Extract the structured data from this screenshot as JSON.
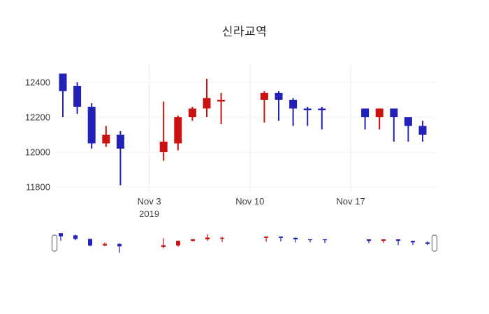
{
  "chart_data": {
    "type": "candlestick",
    "title": "신라교역",
    "up_color": "#CC1111",
    "down_color": "#2222B8",
    "grid_color": "#ebebeb",
    "ylim": [
      11772,
      12500
    ],
    "yticks": [
      11800,
      12000,
      12200,
      12400
    ],
    "xticks": [
      {
        "label": "Nov 3",
        "sublabel": "2019",
        "date": "2019-11-03"
      },
      {
        "label": "Nov 10",
        "sublabel": "",
        "date": "2019-11-10"
      },
      {
        "label": "Nov 17",
        "sublabel": "",
        "date": "2019-11-17"
      }
    ],
    "candles": [
      {
        "date": "2019-10-28",
        "open": 12450,
        "high": 12450,
        "low": 12200,
        "close": 12350
      },
      {
        "date": "2019-10-29",
        "open": 12380,
        "high": 12400,
        "low": 12220,
        "close": 12260
      },
      {
        "date": "2019-10-30",
        "open": 12260,
        "high": 12280,
        "low": 12020,
        "close": 12050
      },
      {
        "date": "2019-10-31",
        "open": 12050,
        "high": 12150,
        "low": 12030,
        "close": 12100
      },
      {
        "date": "2019-11-01",
        "open": 12100,
        "high": 12120,
        "low": 11810,
        "close": 12020
      },
      {
        "date": "2019-11-04",
        "open": 12000,
        "high": 12290,
        "low": 11950,
        "close": 12060
      },
      {
        "date": "2019-11-05",
        "open": 12050,
        "high": 12210,
        "low": 12010,
        "close": 12200
      },
      {
        "date": "2019-11-06",
        "open": 12200,
        "high": 12260,
        "low": 12180,
        "close": 12250
      },
      {
        "date": "2019-11-07",
        "open": 12250,
        "high": 12420,
        "low": 12200,
        "close": 12310
      },
      {
        "date": "2019-11-08",
        "open": 12290,
        "high": 12340,
        "low": 12160,
        "close": 12300
      },
      {
        "date": "2019-11-11",
        "open": 12300,
        "high": 12350,
        "low": 12170,
        "close": 12340
      },
      {
        "date": "2019-11-12",
        "open": 12340,
        "high": 12350,
        "low": 12180,
        "close": 12300
      },
      {
        "date": "2019-11-13",
        "open": 12300,
        "high": 12310,
        "low": 12150,
        "close": 12250
      },
      {
        "date": "2019-11-14",
        "open": 12250,
        "high": 12260,
        "low": 12150,
        "close": 12240
      },
      {
        "date": "2019-11-15",
        "open": 12250,
        "high": 12260,
        "low": 12130,
        "close": 12240
      },
      {
        "date": "2019-11-18",
        "open": 12250,
        "high": 12250,
        "low": 12130,
        "close": 12200
      },
      {
        "date": "2019-11-19",
        "open": 12200,
        "high": 12250,
        "low": 12130,
        "close": 12250
      },
      {
        "date": "2019-11-20",
        "open": 12250,
        "high": 12250,
        "low": 12060,
        "close": 12200
      },
      {
        "date": "2019-11-21",
        "open": 12200,
        "high": 12200,
        "low": 12060,
        "close": 12150
      },
      {
        "date": "2019-11-22",
        "open": 12150,
        "high": 12180,
        "low": 12060,
        "close": 12100
      }
    ]
  }
}
